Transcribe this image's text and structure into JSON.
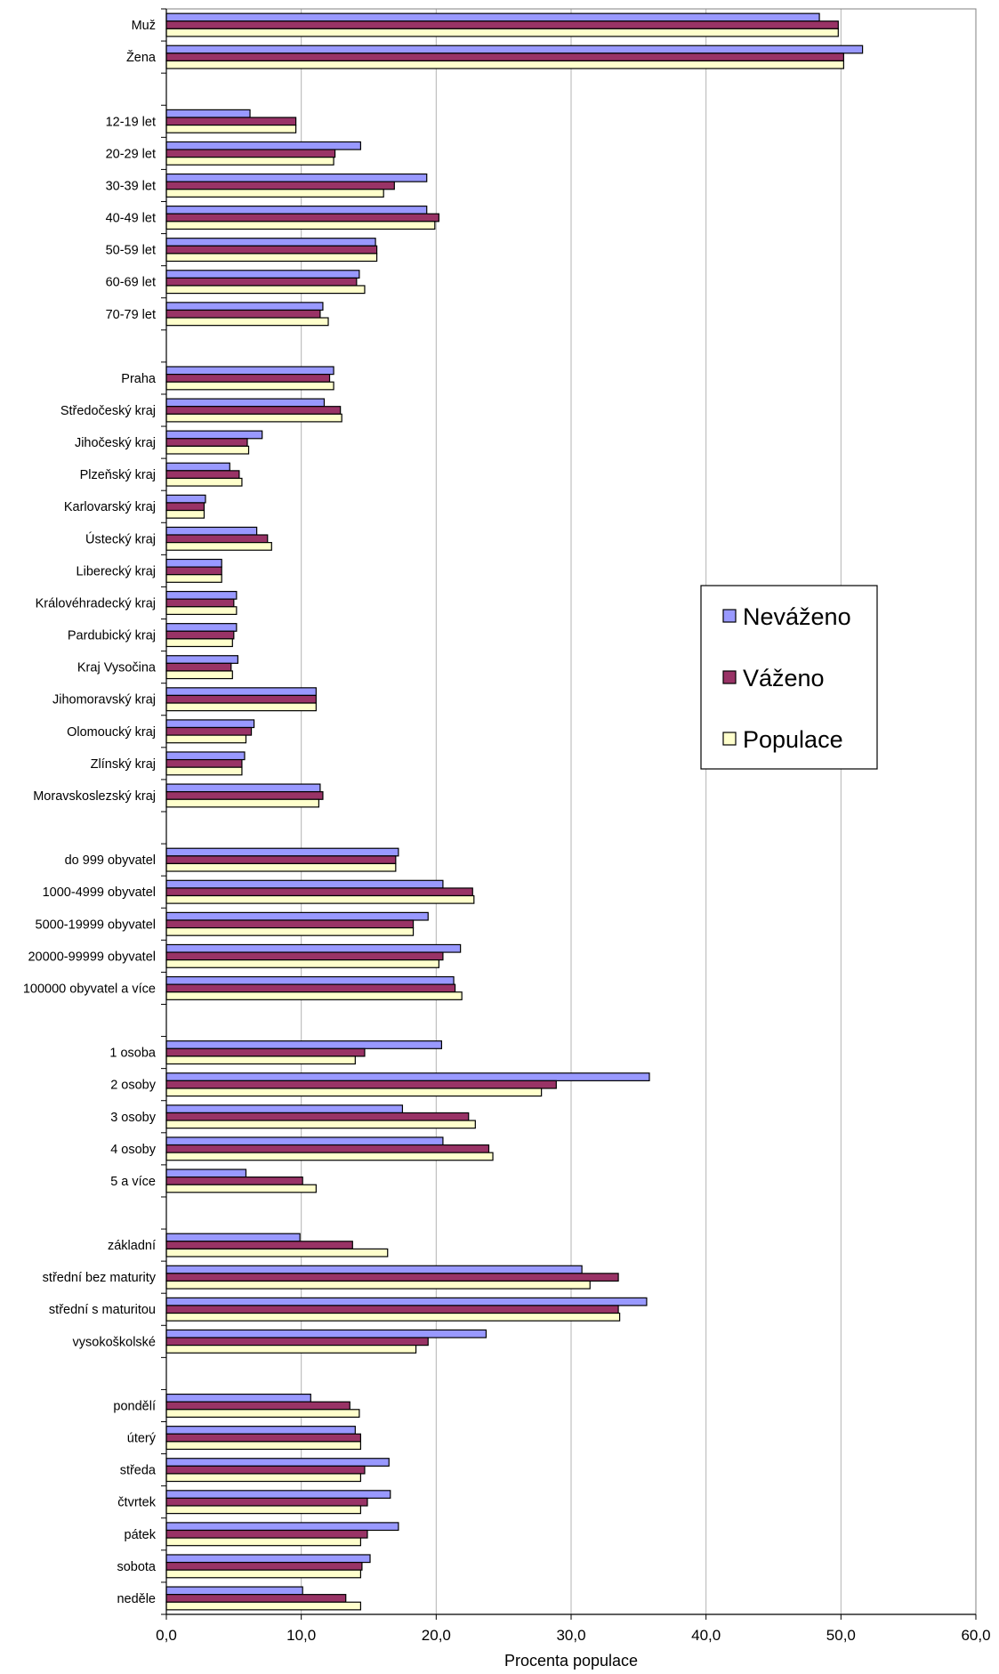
{
  "chart_data": {
    "type": "bar",
    "orientation": "horizontal",
    "xlabel": "Procenta populace",
    "xlim": [
      0,
      60
    ],
    "xticks": [
      "0,0",
      "10,0",
      "20,0",
      "30,0",
      "40,0",
      "50,0",
      "60,0"
    ],
    "grid": true,
    "legend_position": "right",
    "categories": [
      "Muž",
      "Žena",
      "",
      "12-19 let",
      "20-29 let",
      "30-39 let",
      "40-49 let",
      "50-59 let",
      "60-69 let",
      "70-79 let",
      "",
      "Praha",
      "Středočeský kraj",
      "Jihočeský kraj",
      "Plzeňský kraj",
      "Karlovarský kraj",
      "Ústecký kraj",
      "Liberecký kraj",
      "Královéhradecký kraj",
      "Pardubický kraj",
      "Kraj Vysočina",
      "Jihomoravský kraj",
      "Olomoucký kraj",
      "Zlínský kraj",
      "Moravskoslezský kraj",
      "",
      "do 999 obyvatel",
      "1000-4999 obyvatel",
      "5000-19999 obyvatel",
      "20000-99999 obyvatel",
      "100000 obyvatel a více",
      "",
      "1 osoba",
      "2 osoby",
      "3 osoby",
      "4 osoby",
      "5 a více",
      "",
      "základní",
      "střední bez maturity",
      "střední s maturitou",
      "vysokoškolské",
      "",
      "pondělí",
      "úterý",
      "středa",
      "čtvrtek",
      "pátek",
      "sobota",
      "neděle"
    ],
    "series": [
      {
        "name": "Neváženo",
        "color": "#9999ff",
        "values": [
          48.4,
          51.6,
          null,
          6.2,
          14.4,
          19.3,
          19.3,
          15.5,
          14.3,
          11.6,
          null,
          12.4,
          11.7,
          7.1,
          4.7,
          2.9,
          6.7,
          4.1,
          5.2,
          5.2,
          5.3,
          11.1,
          6.5,
          5.8,
          11.4,
          null,
          17.2,
          20.5,
          19.4,
          21.8,
          21.3,
          null,
          20.4,
          35.8,
          17.5,
          20.5,
          5.9,
          null,
          9.9,
          30.8,
          35.6,
          23.7,
          null,
          10.7,
          14.0,
          16.5,
          16.6,
          17.2,
          15.1,
          10.1
        ]
      },
      {
        "name": "Váženo",
        "color": "#993366",
        "values": [
          49.8,
          50.2,
          null,
          9.6,
          12.5,
          16.9,
          20.2,
          15.6,
          14.1,
          11.4,
          null,
          12.1,
          12.9,
          6.0,
          5.4,
          2.8,
          7.5,
          4.1,
          5.0,
          5.0,
          4.8,
          11.1,
          6.3,
          5.6,
          11.6,
          null,
          17.0,
          22.7,
          18.3,
          20.5,
          21.4,
          null,
          14.7,
          28.9,
          22.4,
          23.9,
          10.1,
          null,
          13.8,
          33.5,
          33.5,
          19.4,
          null,
          13.6,
          14.4,
          14.7,
          14.9,
          14.9,
          14.5,
          13.3
        ]
      },
      {
        "name": "Populace",
        "color": "#ffffcc",
        "values": [
          49.8,
          50.2,
          null,
          9.6,
          12.4,
          16.1,
          19.9,
          15.6,
          14.7,
          12.0,
          null,
          12.4,
          13.0,
          6.1,
          5.6,
          2.8,
          7.8,
          4.1,
          5.2,
          4.9,
          4.9,
          11.1,
          5.9,
          5.6,
          11.3,
          null,
          17.0,
          22.8,
          18.3,
          20.2,
          21.9,
          null,
          14.0,
          27.8,
          22.9,
          24.2,
          11.1,
          null,
          16.4,
          31.4,
          33.6,
          18.5,
          null,
          14.3,
          14.4,
          14.4,
          14.4,
          14.4,
          14.4,
          14.4
        ]
      }
    ]
  }
}
